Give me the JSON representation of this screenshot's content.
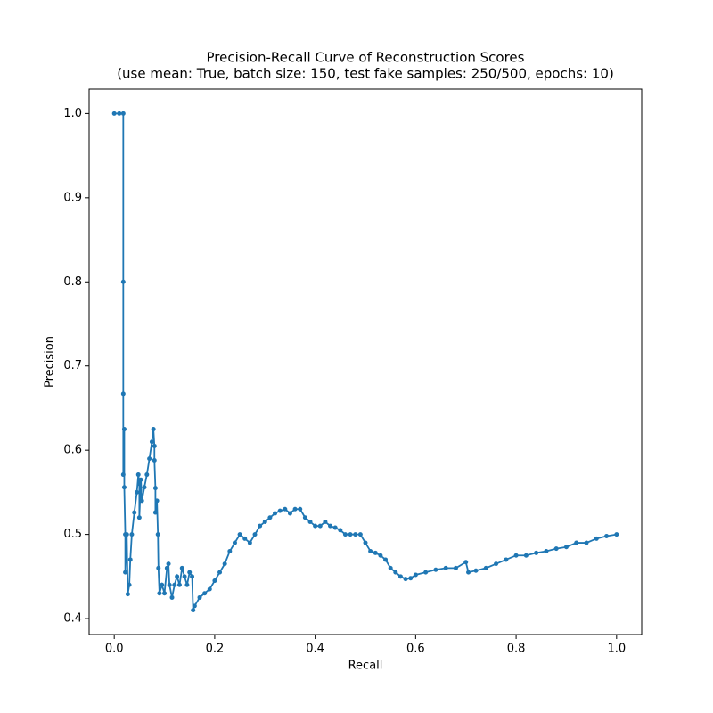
{
  "chart_data": {
    "type": "line",
    "title": "Precision-Recall Curve of Reconstruction Scores",
    "subtitle": "(use mean: True, batch size: 150, test fake samples: 250/500, epochs: 10)",
    "x_label": "Recall",
    "y_label": "Precision",
    "color": "#1f77b4",
    "markers": true,
    "grid": false,
    "xlim": [
      -0.05,
      1.05
    ],
    "ylim": [
      0.381,
      1.029
    ],
    "xticks": [
      {
        "value": 0,
        "label": "0.0"
      },
      0.2,
      0.4,
      0.6,
      0.8,
      {
        "value": 1,
        "label": "1.0"
      }
    ],
    "yticks": [
      0.4,
      0.5,
      0.6,
      0.7,
      0.8,
      0.9,
      {
        "value": 1,
        "label": "1.0"
      }
    ],
    "x": [
      0.0,
      0.01,
      0.018,
      0.018,
      0.018,
      0.018,
      0.02,
      0.02,
      0.022,
      0.022,
      0.025,
      0.027,
      0.03,
      0.032,
      0.035,
      0.04,
      0.045,
      0.048,
      0.05,
      0.05,
      0.053,
      0.055,
      0.06,
      0.065,
      0.07,
      0.075,
      0.078,
      0.08,
      0.08,
      0.082,
      0.082,
      0.085,
      0.087,
      0.088,
      0.09,
      0.095,
      0.1,
      0.105,
      0.108,
      0.11,
      0.115,
      0.12,
      0.125,
      0.13,
      0.135,
      0.14,
      0.145,
      0.15,
      0.155,
      0.157,
      0.16,
      0.17,
      0.18,
      0.19,
      0.2,
      0.21,
      0.22,
      0.23,
      0.24,
      0.25,
      0.26,
      0.27,
      0.28,
      0.29,
      0.3,
      0.31,
      0.32,
      0.33,
      0.34,
      0.35,
      0.36,
      0.37,
      0.38,
      0.39,
      0.4,
      0.41,
      0.42,
      0.43,
      0.44,
      0.45,
      0.46,
      0.47,
      0.48,
      0.49,
      0.5,
      0.51,
      0.52,
      0.53,
      0.54,
      0.55,
      0.56,
      0.57,
      0.58,
      0.59,
      0.6,
      0.62,
      0.64,
      0.66,
      0.68,
      0.7,
      0.705,
      0.72,
      0.74,
      0.76,
      0.78,
      0.8,
      0.82,
      0.84,
      0.86,
      0.88,
      0.9,
      0.92,
      0.94,
      0.96,
      0.98,
      1.0
    ],
    "y": [
      1.0,
      1.0,
      1.0,
      0.8,
      0.667,
      0.571,
      0.625,
      0.556,
      0.5,
      0.455,
      0.5,
      0.429,
      0.44,
      0.47,
      0.5,
      0.526,
      0.55,
      0.571,
      0.56,
      0.52,
      0.565,
      0.54,
      0.556,
      0.571,
      0.59,
      0.61,
      0.625,
      0.605,
      0.588,
      0.555,
      0.526,
      0.54,
      0.5,
      0.46,
      0.43,
      0.44,
      0.43,
      0.46,
      0.465,
      0.44,
      0.425,
      0.44,
      0.45,
      0.44,
      0.46,
      0.45,
      0.44,
      0.455,
      0.45,
      0.41,
      0.415,
      0.425,
      0.43,
      0.435,
      0.445,
      0.455,
      0.465,
      0.48,
      0.49,
      0.5,
      0.495,
      0.49,
      0.5,
      0.51,
      0.515,
      0.52,
      0.525,
      0.528,
      0.53,
      0.525,
      0.53,
      0.53,
      0.52,
      0.515,
      0.51,
      0.51,
      0.515,
      0.51,
      0.508,
      0.505,
      0.5,
      0.5,
      0.5,
      0.5,
      0.49,
      0.48,
      0.478,
      0.475,
      0.47,
      0.46,
      0.455,
      0.45,
      0.447,
      0.448,
      0.452,
      0.455,
      0.458,
      0.46,
      0.46,
      0.467,
      0.455,
      0.457,
      0.46,
      0.465,
      0.47,
      0.475,
      0.475,
      0.478,
      0.48,
      0.483,
      0.485,
      0.49,
      0.49,
      0.495,
      0.498,
      0.5
    ]
  }
}
